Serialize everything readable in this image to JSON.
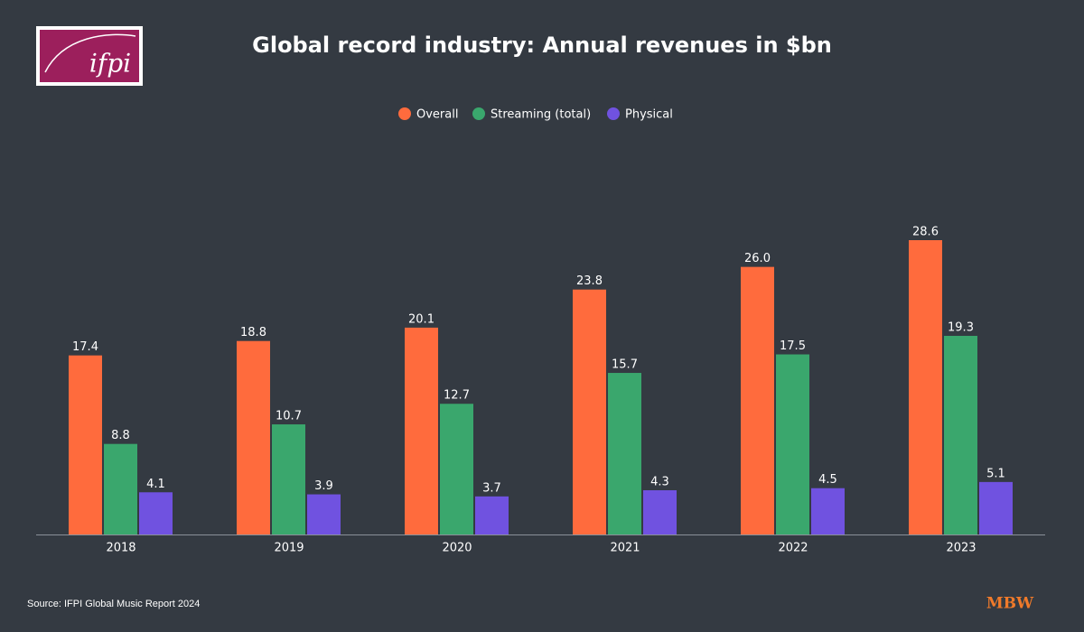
{
  "logo": "ifpi",
  "brand": "MBW",
  "source": "Source: IFPI Global Music Report 2024",
  "chart_data": {
    "type": "bar",
    "title": "Global record industry: Annual revenues in $bn",
    "categories": [
      "2018",
      "2019",
      "2020",
      "2021",
      "2022",
      "2023"
    ],
    "series": [
      {
        "name": "Overall",
        "color": "#ff6b3d",
        "values": [
          17.4,
          18.8,
          20.1,
          23.8,
          26.0,
          28.6
        ],
        "value_labels": [
          "17.4",
          "18.8",
          "20.1",
          "23.8",
          "26.0",
          "28.6"
        ]
      },
      {
        "name": "Streaming (total)",
        "color": "#3aa76d",
        "values": [
          8.8,
          10.7,
          12.7,
          15.7,
          17.5,
          19.3
        ],
        "value_labels": [
          "8.8",
          "10.7",
          "12.7",
          "15.7",
          "17.5",
          "19.3"
        ]
      },
      {
        "name": "Physical",
        "color": "#7052e0",
        "values": [
          4.1,
          3.9,
          3.7,
          4.3,
          4.5,
          5.1
        ],
        "value_labels": [
          "4.1",
          "3.9",
          "3.7",
          "4.3",
          "4.5",
          "5.1"
        ]
      }
    ],
    "legend": "top"
  }
}
